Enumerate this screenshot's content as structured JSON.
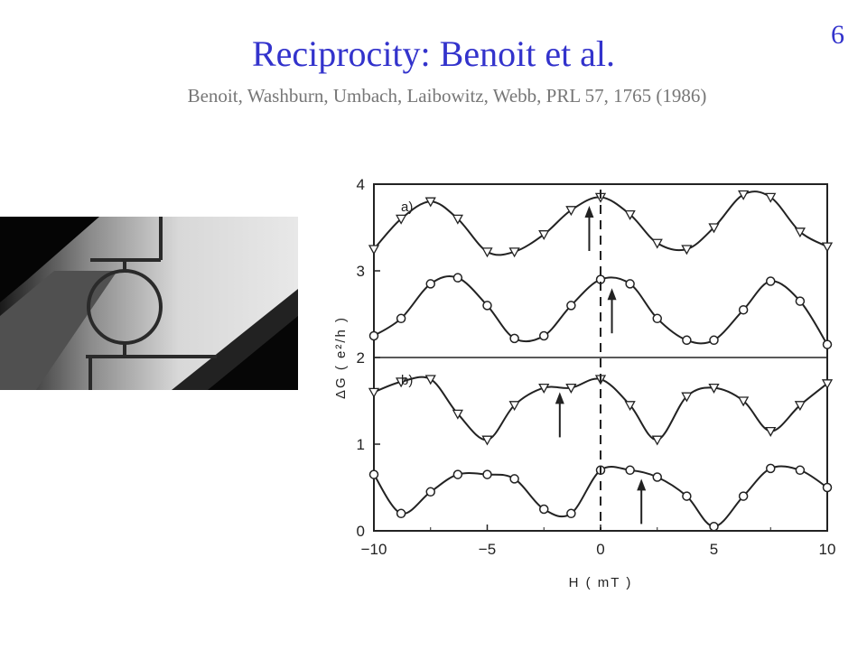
{
  "slide": {
    "number": "6",
    "title": "Reciprocity:  Benoit et al.",
    "subtitle": "Benoit, Washburn, Umbach, Laibowitz, Webb, PRL 57, 1765 (1986)"
  },
  "colors": {
    "title": "#3333cc",
    "subtitle": "#777777"
  },
  "chart_data": {
    "type": "scatter",
    "xlabel": "H  ( mT )",
    "ylabel": "ΔG   ( e²/h )",
    "xlim": [
      -10,
      10
    ],
    "ylim": [
      0,
      4
    ],
    "x_ticks": [
      "−10",
      "−5",
      "0",
      "5",
      "10"
    ],
    "y_ticks": [
      "0",
      "1",
      "2",
      "3",
      "4"
    ],
    "panels": [
      {
        "label": "a)",
        "y_range": [
          2,
          4
        ]
      },
      {
        "label": "b)",
        "y_range": [
          0,
          2
        ]
      }
    ],
    "arrows_at_x": [
      -0.5,
      0.5,
      -1.8,
      1.8
    ],
    "dashed_line_x": 0,
    "series": [
      {
        "marker": "triangle",
        "x": [
          -10,
          -8.8,
          -7.5,
          -6.3,
          -5,
          -3.8,
          -2.5,
          -1.3,
          0,
          1.3,
          2.5,
          3.8,
          5,
          6.3,
          7.5,
          8.8,
          10
        ],
        "y": [
          3.25,
          3.6,
          3.8,
          3.6,
          3.22,
          3.22,
          3.42,
          3.7,
          3.85,
          3.65,
          3.32,
          3.25,
          3.5,
          3.88,
          3.85,
          3.45,
          3.28
        ]
      },
      {
        "marker": "circle",
        "x": [
          -10,
          -8.8,
          -7.5,
          -6.3,
          -5,
          -3.8,
          -2.5,
          -1.3,
          0,
          1.3,
          2.5,
          3.8,
          5,
          6.3,
          7.5,
          8.8,
          10
        ],
        "y": [
          2.25,
          2.45,
          2.85,
          2.92,
          2.6,
          2.22,
          2.25,
          2.6,
          2.9,
          2.85,
          2.45,
          2.2,
          2.2,
          2.55,
          2.88,
          2.65,
          2.15
        ]
      },
      {
        "marker": "triangle",
        "x": [
          -10,
          -8.8,
          -7.5,
          -6.3,
          -5,
          -3.8,
          -2.5,
          -1.3,
          0,
          1.3,
          2.5,
          3.8,
          5,
          6.3,
          7.5,
          8.8,
          10
        ],
        "y": [
          1.6,
          1.72,
          1.75,
          1.35,
          1.05,
          1.45,
          1.65,
          1.65,
          1.75,
          1.45,
          1.05,
          1.55,
          1.65,
          1.5,
          1.15,
          1.45,
          1.7
        ]
      },
      {
        "marker": "circle",
        "x": [
          -10,
          -8.8,
          -7.5,
          -6.3,
          -5,
          -3.8,
          -2.5,
          -1.3,
          0,
          1.3,
          2.5,
          3.8,
          5,
          6.3,
          7.5,
          8.8,
          10
        ],
        "y": [
          0.65,
          0.2,
          0.45,
          0.65,
          0.65,
          0.6,
          0.25,
          0.2,
          0.7,
          0.7,
          0.62,
          0.4,
          0.05,
          0.4,
          0.72,
          0.7,
          0.5
        ]
      }
    ]
  }
}
